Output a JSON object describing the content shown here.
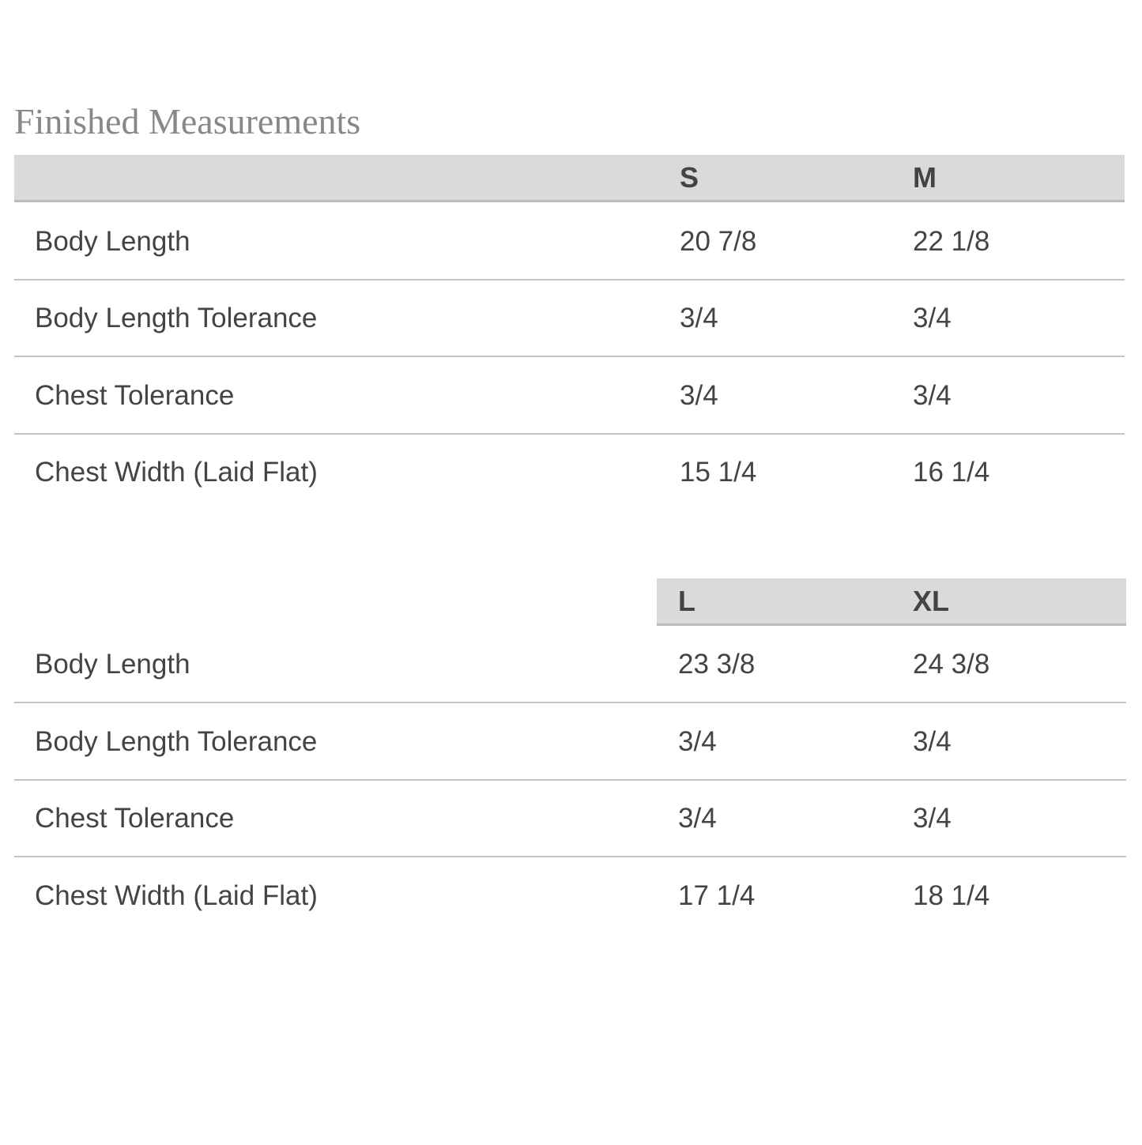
{
  "title": "Finished Measurements",
  "tables": [
    {
      "sizes": [
        "S",
        "M"
      ],
      "rows": [
        {
          "label": "Body Length",
          "values": [
            "20 7/8",
            "22 1/8"
          ]
        },
        {
          "label": "Body Length Tolerance",
          "values": [
            "3/4",
            "3/4"
          ]
        },
        {
          "label": "Chest Tolerance",
          "values": [
            "3/4",
            "3/4"
          ]
        },
        {
          "label": "Chest Width (Laid Flat)",
          "values": [
            "15 1/4",
            "16 1/4"
          ]
        }
      ]
    },
    {
      "sizes": [
        "L",
        "XL"
      ],
      "rows": [
        {
          "label": "Body Length",
          "values": [
            "23 3/8",
            "24 3/8"
          ]
        },
        {
          "label": "Body Length Tolerance",
          "values": [
            "3/4",
            "3/4"
          ]
        },
        {
          "label": "Chest Tolerance",
          "values": [
            "3/4",
            "3/4"
          ]
        },
        {
          "label": "Chest Width (Laid Flat)",
          "values": [
            "17 1/4",
            "18 1/4"
          ]
        }
      ]
    }
  ]
}
